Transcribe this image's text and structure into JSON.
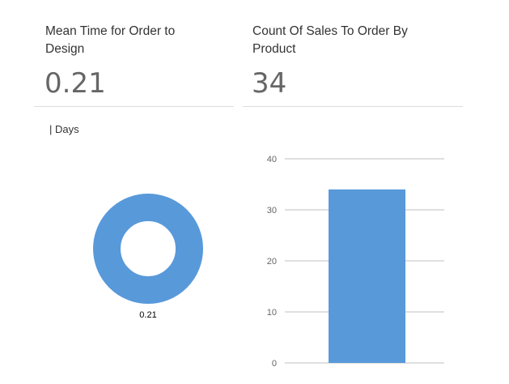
{
  "cards": [
    {
      "title": "Mean Time for Order to Design",
      "value": "0.21",
      "unit_label": "| Days",
      "chart_data": {
        "type": "pie",
        "variant": "donut",
        "slices": [
          {
            "label": "0.21",
            "value": 0.21
          }
        ],
        "color": "#5899da"
      }
    },
    {
      "title": "Count Of Sales To Order By Product",
      "value": "34",
      "chart_data": {
        "type": "bar",
        "categories": [
          ""
        ],
        "values": [
          34
        ],
        "ylim": [
          0,
          40
        ],
        "yticks": [
          "0",
          "10",
          "20",
          "30",
          "40"
        ],
        "grid": true,
        "color": "#5899da"
      }
    }
  ]
}
